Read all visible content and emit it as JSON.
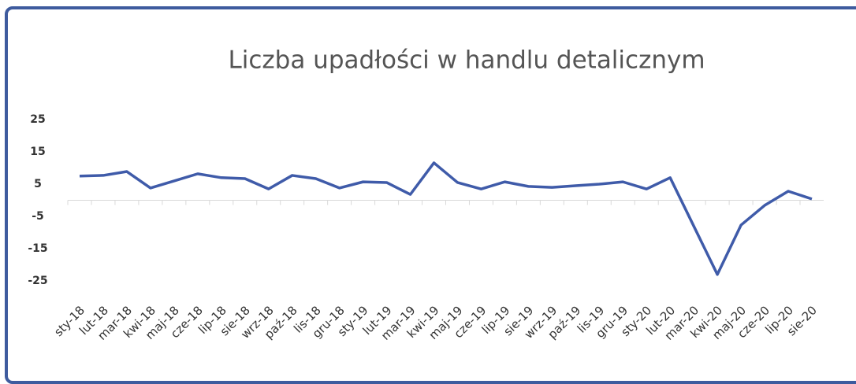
{
  "chart_data": {
    "type": "line",
    "title": "Liczba upadłości w handlu detalicznym",
    "categories": [
      "sty-18",
      "lut-18",
      "mar-18",
      "kwi-18",
      "maj-18",
      "cze-18",
      "lip-18",
      "sie-18",
      "wrz-18",
      "paź-18",
      "lis-18",
      "gru-18",
      "sty-19",
      "lut-19",
      "mar-19",
      "kwi-19",
      "maj-19",
      "cze-19",
      "lip-19",
      "sie-19",
      "wrz-19",
      "paź-19",
      "lis-19",
      "gru-19",
      "sty-20",
      "lut-20",
      "mar-20",
      "kwi-20",
      "maj-20",
      "cze-20",
      "lip-20",
      "sie-20"
    ],
    "series": [
      {
        "name": "Liczba upadłości",
        "color": "#3f5ba9",
        "values": [
          7.5,
          7.7,
          8.9,
          3.8,
          6.0,
          8.2,
          7.0,
          6.7,
          3.5,
          7.7,
          6.7,
          3.8,
          5.7,
          5.5,
          1.8,
          11.6,
          5.5,
          3.5,
          5.7,
          4.3,
          4.0,
          4.5,
          5.0,
          5.7,
          3.5,
          7.0,
          -8,
          -23,
          -7.7,
          -1.6,
          2.8,
          0.4
        ]
      }
    ],
    "ylim": [
      -30,
      30
    ],
    "yticks": [
      25,
      15,
      5,
      -5,
      -15,
      -25
    ],
    "grid": false
  }
}
